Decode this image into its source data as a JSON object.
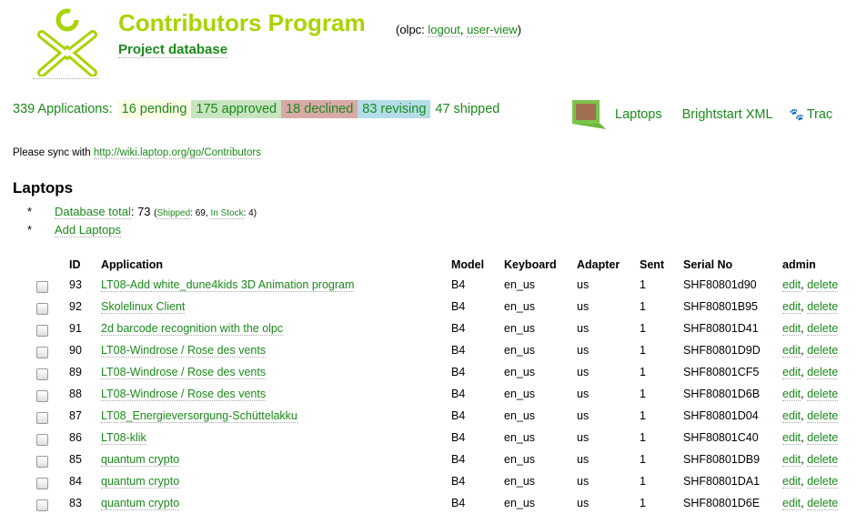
{
  "header": {
    "title": "Contributors Program",
    "subtitle": "Project database",
    "user_prefix": "(olpc: ",
    "logout": "logout",
    "sep": ", ",
    "user_view": "user-view",
    "user_suffix": ")"
  },
  "stats": {
    "total": "339 Applications:",
    "pending": "16 pending",
    "approved": "175 approved",
    "declined": "18 declined",
    "revising": "83 revising",
    "shipped": "47 shipped",
    "colors": {
      "pending": "#fdfde6",
      "approved": "#c8e4c0",
      "declined": "#d9a9a7",
      "revising": "#b3dde8"
    }
  },
  "nav": {
    "laptops": "Laptops",
    "brightstart": "Brightstart XML",
    "trac": "Trac"
  },
  "sync": {
    "text": "Please sync with ",
    "link": "http://wiki.laptop.org/go/Contributors"
  },
  "section": {
    "title": "Laptops",
    "db_total_label": "Database total",
    "db_total_value": ": 73 ",
    "shipped_label": "Shipped",
    "shipped_value": ": 69, ",
    "instock_label": "In Stock",
    "instock_value": ": 4)",
    "open_paren": "(",
    "add": "Add Laptops",
    "bullet": "*"
  },
  "table": {
    "headers": [
      "ID",
      "Application",
      "Model",
      "Keyboard",
      "Adapter",
      "Sent",
      "Serial No",
      "admin"
    ],
    "edit": "edit",
    "delete": "delete",
    "comma": ", ",
    "rows": [
      [
        "93",
        "LT08-Add white_dune4kids 3D Animation program",
        "B4",
        "en_us",
        "us",
        "1",
        "SHF80801d90"
      ],
      [
        "92",
        "Skolelinux Client",
        "B4",
        "en_us",
        "us",
        "1",
        "SHF80801B95"
      ],
      [
        "91",
        "2d barcode recognition with the olpc",
        "B4",
        "en_us",
        "us",
        "1",
        "SHF80801D41"
      ],
      [
        "90",
        "LT08-Windrose / Rose des vents",
        "B4",
        "en_us",
        "us",
        "1",
        "SHF80801D9D"
      ],
      [
        "89",
        "LT08-Windrose / Rose des vents",
        "B4",
        "en_us",
        "us",
        "1",
        "SHF80801CF5"
      ],
      [
        "88",
        "LT08-Windrose / Rose des vents",
        "B4",
        "en_us",
        "us",
        "1",
        "SHF80801D6B"
      ],
      [
        "87",
        "LT08_Energieversorgung-Schüttelakku",
        "B4",
        "en_us",
        "us",
        "1",
        "SHF80801D04"
      ],
      [
        "86",
        "LT08-klik",
        "B4",
        "en_us",
        "us",
        "1",
        "SHF80801C40"
      ],
      [
        "85",
        "quantum crypto",
        "B4",
        "en_us",
        "us",
        "1",
        "SHF80801DB9"
      ],
      [
        "84",
        "quantum crypto",
        "B4",
        "en_us",
        "us",
        "1",
        "SHF80801DA1"
      ],
      [
        "83",
        "quantum crypto",
        "B4",
        "en_us",
        "us",
        "1",
        "SHF80801D6E"
      ]
    ]
  }
}
